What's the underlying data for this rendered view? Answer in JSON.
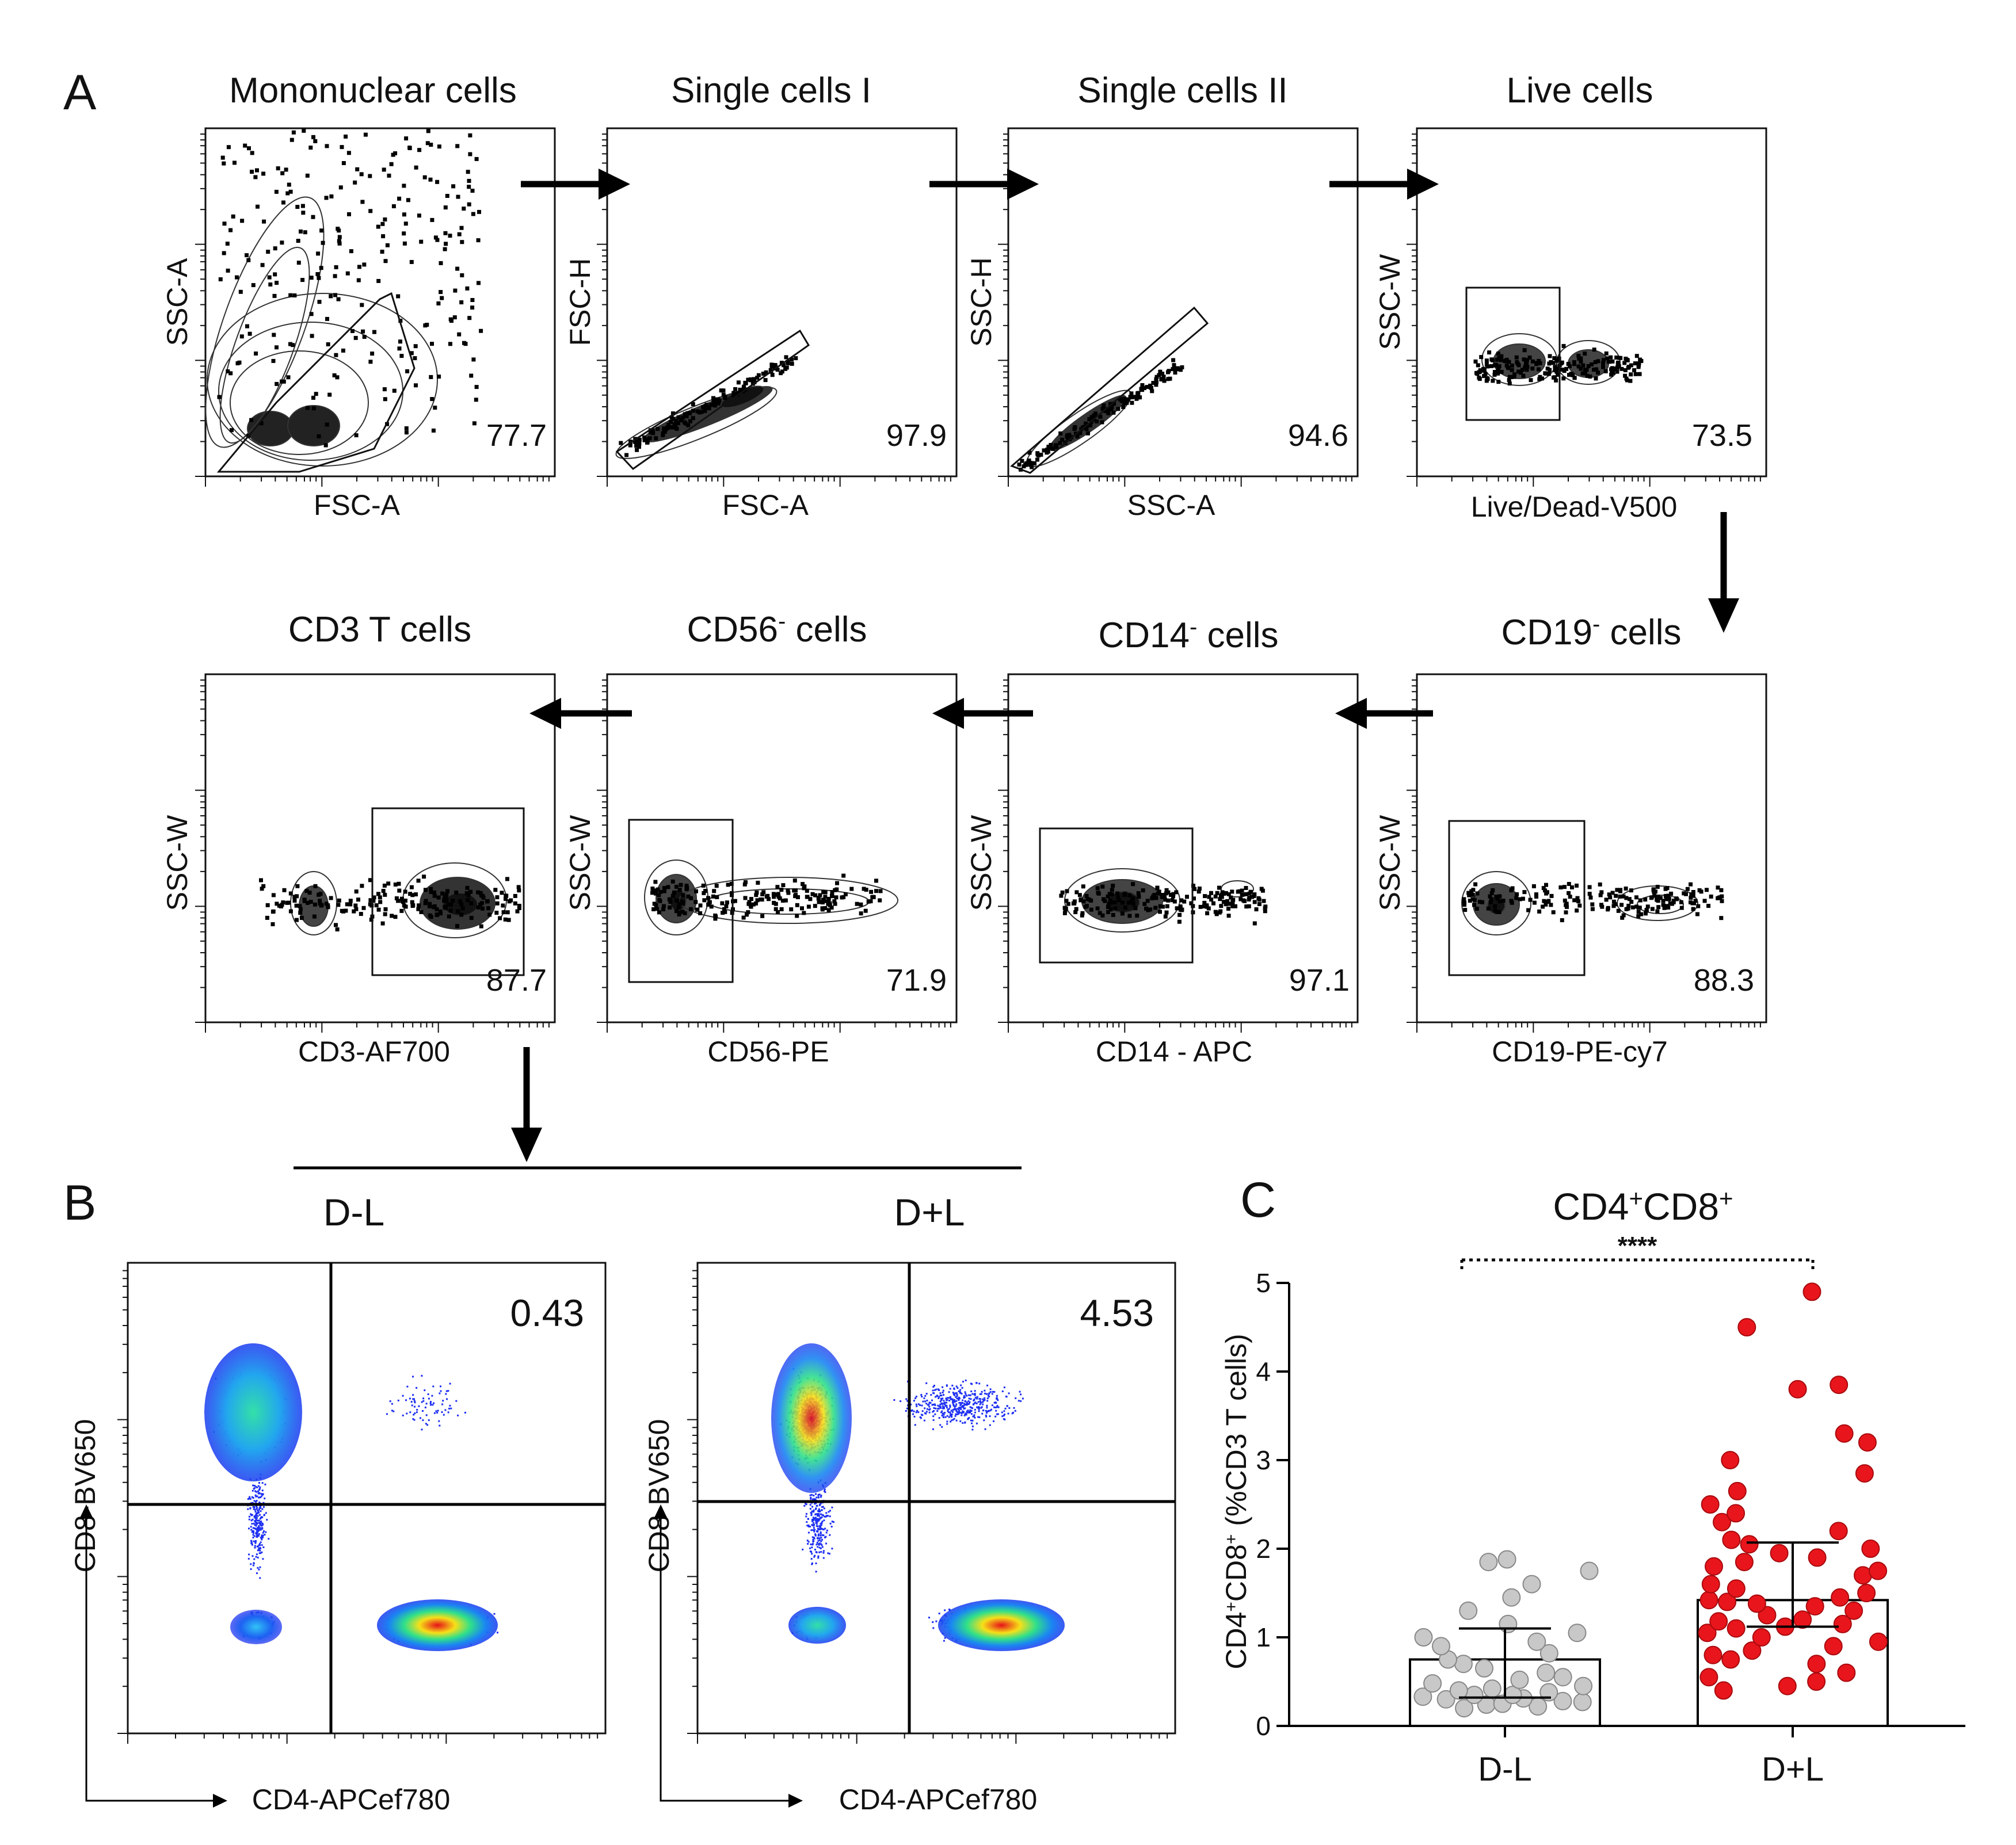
{
  "panel_letters": {
    "a": "A",
    "b": "B",
    "c": "C"
  },
  "gating_plots": [
    {
      "title": "Mononuclear cells",
      "xlabel": "FSC-A",
      "ylabel": "SSC-A",
      "percent": "77.7"
    },
    {
      "title": "Single cells I",
      "xlabel": "FSC-A",
      "ylabel": "FSC-H",
      "percent": "97.9"
    },
    {
      "title": "Single cells II",
      "xlabel": "SSC-A",
      "ylabel": "SSC-H",
      "percent": "94.6"
    },
    {
      "title": "Live cells",
      "xlabel": "Live/Dead-V500",
      "ylabel": "SSC-W",
      "percent": "73.5"
    },
    {
      "title": "CD19",
      "title_sup": "-",
      "title_tail": " cells",
      "xlabel": "CD19-PE-cy7",
      "ylabel": "SSC-W",
      "percent": "88.3"
    },
    {
      "title": "CD14",
      "title_sup": "-",
      "title_tail": " cells",
      "xlabel": "CD14 - APC",
      "ylabel": "SSC-W",
      "percent": "97.1"
    },
    {
      "title": "CD56",
      "title_sup": "-",
      "title_tail": " cells",
      "xlabel": "CD56-PE",
      "ylabel": "SSC-W",
      "percent": "71.9"
    },
    {
      "title": "CD3 T cells",
      "xlabel": "CD3-AF700",
      "ylabel": "SSC-W",
      "percent": "87.7"
    }
  ],
  "quadrant_plots": [
    {
      "group": "D-L",
      "quadrant_percent": "0.43",
      "xlabel": "CD4-APCef780",
      "ylabel": "CD8-BV650"
    },
    {
      "group": "D+L",
      "quadrant_percent": "4.53",
      "xlabel": "CD4-APCef780",
      "ylabel": "CD8-BV650"
    }
  ],
  "chart_data": {
    "type": "bar",
    "title": "CD4+CD8+",
    "title_parts": {
      "a": "CD4",
      "a_sup": "+",
      "b": "CD8",
      "b_sup": "+"
    },
    "ylabel": "CD4+CD8+ (%CD3 T cells)",
    "ylabel_parts": {
      "a": "CD4",
      "a_sup": "+",
      "b": "CD8",
      "b_sup": "+",
      "tail": " (%CD3 T cells)"
    },
    "xlabel": "",
    "categories": [
      "D-L",
      "D+L"
    ],
    "bar_means": [
      0.75,
      1.42
    ],
    "error_sd": [
      [
        0.32,
        1.1
      ],
      [
        1.12,
        2.07
      ]
    ],
    "ylim": [
      0,
      5
    ],
    "yticks": [
      "0",
      "1",
      "2",
      "3",
      "4",
      "5"
    ],
    "significance": "****",
    "colors": {
      "D-L": "#c8c8c8",
      "D+L": "#e8161c"
    },
    "points": {
      "D-L": [
        0.2,
        0.22,
        0.24,
        0.25,
        0.27,
        0.28,
        0.3,
        0.31,
        0.33,
        0.35,
        0.35,
        0.38,
        0.4,
        0.42,
        0.45,
        0.48,
        0.52,
        0.55,
        0.6,
        0.65,
        0.7,
        0.75,
        0.82,
        0.9,
        0.95,
        1.0,
        1.05,
        1.15,
        1.3,
        1.45,
        1.6,
        1.75,
        1.85,
        1.88
      ],
      "D+L": [
        0.4,
        0.45,
        0.5,
        0.55,
        0.6,
        0.7,
        0.75,
        0.8,
        0.85,
        0.9,
        0.95,
        1.0,
        1.05,
        1.1,
        1.12,
        1.15,
        1.18,
        1.2,
        1.25,
        1.3,
        1.35,
        1.38,
        1.4,
        1.42,
        1.45,
        1.5,
        1.55,
        1.6,
        1.7,
        1.75,
        1.8,
        1.85,
        1.9,
        1.95,
        2.0,
        2.05,
        2.1,
        2.2,
        2.3,
        2.4,
        2.5,
        2.65,
        2.85,
        3.0,
        3.2,
        3.3,
        3.8,
        3.85,
        4.5,
        4.9
      ]
    }
  }
}
